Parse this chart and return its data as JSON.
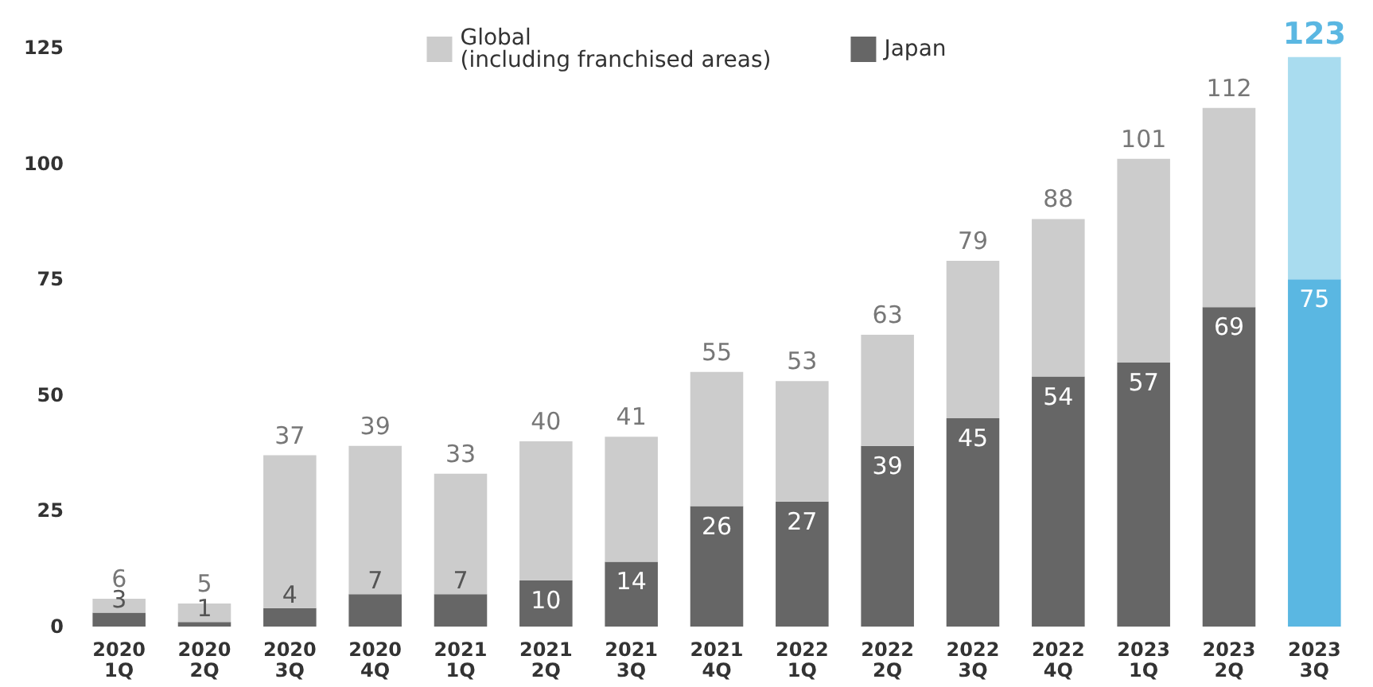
{
  "chart_data": {
    "type": "bar",
    "stacked": true,
    "categories": [
      "2020\n1Q",
      "2020\n2Q",
      "2020\n3Q",
      "2020\n4Q",
      "2021\n1Q",
      "2021\n2Q",
      "2021\n3Q",
      "2021\n4Q",
      "2022\n1Q",
      "2022\n2Q",
      "2022\n3Q",
      "2022\n4Q",
      "2023\n1Q",
      "2023\n2Q",
      "2023\n3Q"
    ],
    "series": [
      {
        "name": "Japan",
        "color": "#666666",
        "colors": [
          "#666666",
          "#666666",
          "#666666",
          "#666666",
          "#666666",
          "#666666",
          "#666666",
          "#666666",
          "#666666",
          "#666666",
          "#666666",
          "#666666",
          "#666666",
          "#666666",
          "#5ab7e2"
        ],
        "values": [
          3,
          1,
          4,
          7,
          7,
          10,
          14,
          26,
          27,
          39,
          45,
          54,
          57,
          69,
          75
        ],
        "value_labels": [
          "3",
          "1",
          "4",
          "7",
          "7",
          "10",
          "14",
          "26",
          "27",
          "39",
          "45",
          "54",
          "57",
          "69",
          "75"
        ]
      },
      {
        "name": "Global\n(including franchised areas)",
        "color": "#cccccc",
        "colors": [
          "#cccccc",
          "#cccccc",
          "#cccccc",
          "#cccccc",
          "#cccccc",
          "#cccccc",
          "#cccccc",
          "#cccccc",
          "#cccccc",
          "#cccccc",
          "#cccccc",
          "#cccccc",
          "#cccccc",
          "#cccccc",
          "#a9dcef"
        ],
        "values": [
          3,
          4,
          33,
          32,
          26,
          30,
          27,
          29,
          26,
          24,
          34,
          34,
          44,
          43,
          48
        ]
      }
    ],
    "totals": [
      "6",
      "5",
      "37",
      "39",
      "33",
      "40",
      "41",
      "55",
      "53",
      "63",
      "79",
      "88",
      "101",
      "112",
      "123"
    ],
    "ylim": [
      0,
      125
    ],
    "yticks": [
      0,
      25,
      50,
      75,
      100,
      125
    ],
    "grid": false,
    "legend": "top"
  }
}
